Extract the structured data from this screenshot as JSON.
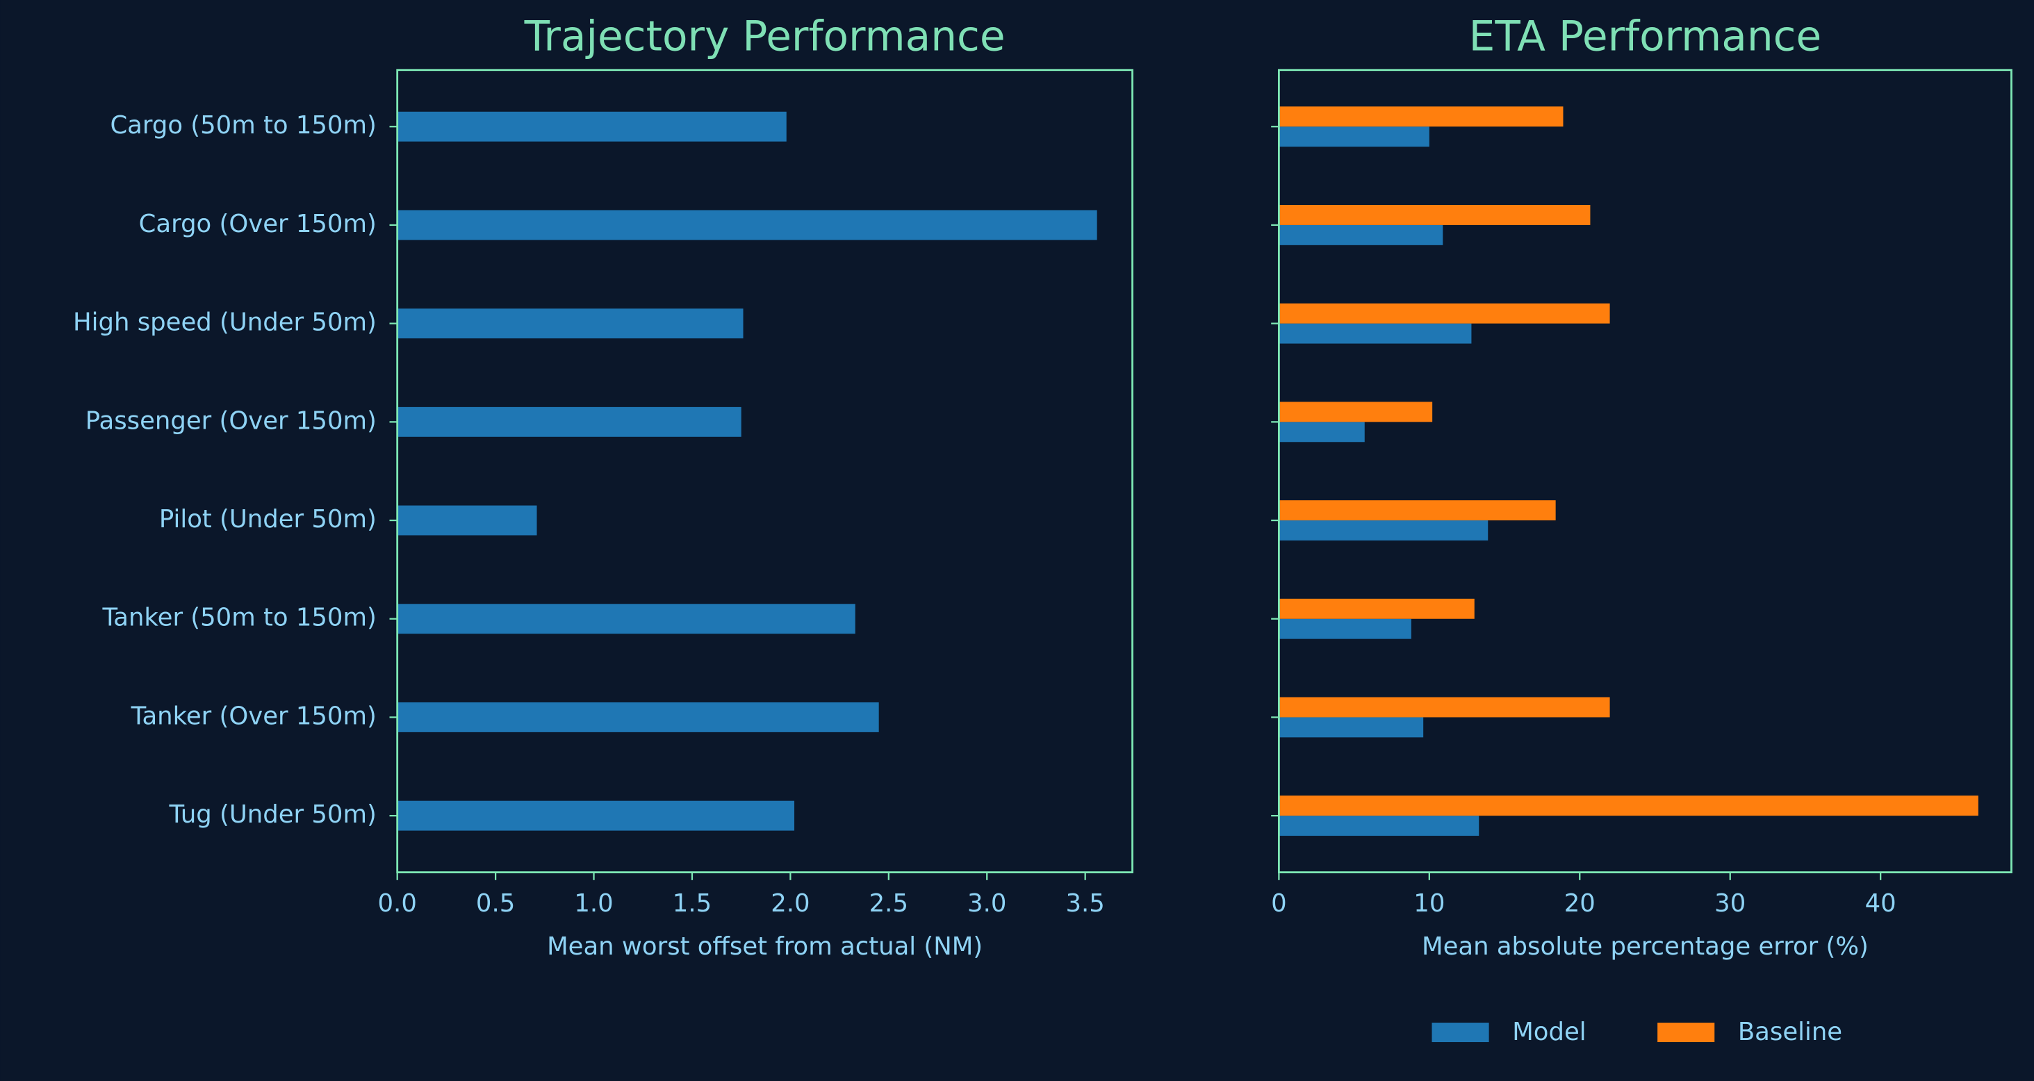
{
  "chart_data": [
    {
      "type": "barh",
      "title": "Trajectory Performance",
      "x_label": "Mean worst offset from actual (NM)",
      "categories": [
        "Cargo (50m to 150m)",
        "Cargo (Over 150m)",
        "High speed (Under 50m)",
        "Passenger (Over 150m)",
        "Pilot (Under 50m)",
        "Tanker (50m to 150m)",
        "Tanker (Over 150m)",
        "Tug (Under 50m)"
      ],
      "values": [
        1.98,
        3.56,
        1.76,
        1.75,
        0.71,
        2.33,
        2.45,
        2.02
      ],
      "color": "#1f77b4",
      "xlim": [
        0,
        3.74
      ],
      "xticks": [
        {
          "value": 0,
          "label": "0.0"
        },
        {
          "value": 0.5,
          "label": "0.5"
        },
        {
          "value": 1,
          "label": "1.0"
        },
        {
          "value": 1.5,
          "label": "1.5"
        },
        {
          "value": 2,
          "label": "2.0"
        },
        {
          "value": 2.5,
          "label": "2.5"
        },
        {
          "value": 3,
          "label": "3.0"
        },
        {
          "value": 3.5,
          "label": "3.5"
        }
      ],
      "grid": false
    },
    {
      "type": "barh",
      "title": "ETA Performance",
      "x_label": "Mean absolute percentage error (%)",
      "categories": [
        null,
        null,
        null,
        null,
        null,
        null,
        null,
        null
      ],
      "series": [
        {
          "name": "Model",
          "color": "#1f77b4",
          "values": [
            10.0,
            10.9,
            12.8,
            5.7,
            13.9,
            8.8,
            9.6,
            13.3
          ]
        },
        {
          "name": "Baseline",
          "color": "#ff7f0e",
          "values": [
            18.9,
            20.7,
            22.0,
            10.2,
            18.4,
            13.0,
            22.0,
            46.5
          ]
        }
      ],
      "xlim": [
        0,
        48.7
      ],
      "xticks": [
        0,
        10,
        20,
        30,
        40
      ],
      "grid": false,
      "legend": "bottom"
    }
  ]
}
